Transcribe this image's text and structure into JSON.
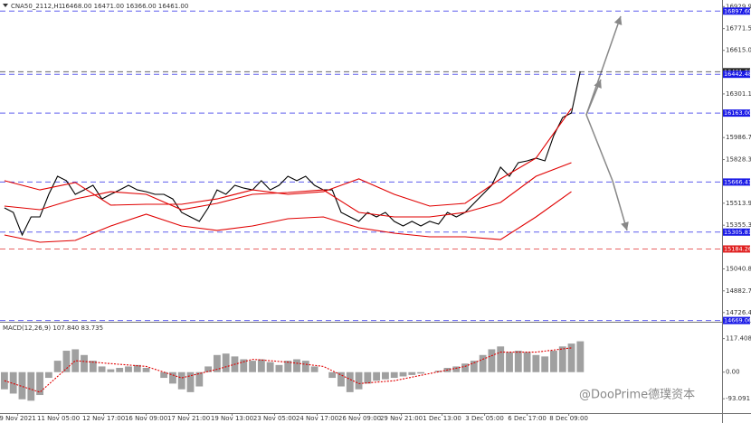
{
  "watermark": "@DooPrime德璞资本",
  "chart_data": [
    {
      "type": "line",
      "title": "CNA50_2112,H1",
      "subtitle": "16468.00 16471.00 16366.00 16461.00",
      "x": [
        0,
        1,
        2,
        3,
        4,
        5,
        6,
        7,
        8,
        9,
        10,
        11,
        12,
        13,
        14,
        15,
        16,
        17,
        18,
        19,
        20,
        21,
        22,
        23,
        24,
        25,
        26,
        27,
        28,
        29,
        30,
        31,
        32,
        33,
        34,
        35,
        36,
        37,
        38,
        39,
        40,
        41,
        42,
        43,
        44,
        45,
        46,
        47,
        48,
        49,
        50,
        51,
        52,
        53,
        54,
        55,
        56,
        57,
        58,
        59,
        60,
        61,
        62,
        63,
        64,
        65
      ],
      "xlim": [
        -0.5,
        81
      ],
      "xticks": [
        {
          "value": 1.5,
          "label": "9 Nov 2021"
        },
        {
          "value": 6.1,
          "label": "11 Nov 05:00"
        },
        {
          "value": 11.2,
          "label": "12 Nov 17:00"
        },
        {
          "value": 16,
          "label": "16 Nov 09:00"
        },
        {
          "value": 20.8,
          "label": "17 Nov 21:00"
        },
        {
          "value": 25.7,
          "label": "19 Nov 13:00"
        },
        {
          "value": 30.5,
          "label": "23 Nov 05:00"
        },
        {
          "value": 35.3,
          "label": "24 Nov 17:00"
        },
        {
          "value": 40.1,
          "label": "26 Nov 09:00"
        },
        {
          "value": 44.8,
          "label": "29 Nov 21:00"
        },
        {
          "value": 49.4,
          "label": "1 Dec 13:00"
        },
        {
          "value": 54.2,
          "label": "3 Dec 05:00"
        },
        {
          "value": 59,
          "label": "6 Dec 17:00"
        },
        {
          "value": 63.7,
          "label": "8 Dec 09:00"
        }
      ],
      "ylim": [
        14660,
        16945
      ],
      "yticks": [
        {
          "value": 16929.9,
          "label": "16929.90"
        },
        {
          "value": 16771.5,
          "label": "16771.50"
        },
        {
          "value": 16615,
          "label": "16615.00"
        },
        {
          "value": 16301.1,
          "label": "16301.10"
        },
        {
          "value": 15986.7,
          "label": "15986.70"
        },
        {
          "value": 15828.3,
          "label": "15828.30"
        },
        {
          "value": 15513.9,
          "label": "15513.90"
        },
        {
          "value": 15355.3,
          "label": "15355.30"
        },
        {
          "value": 15040.8,
          "label": "15040.80"
        },
        {
          "value": 14882.7,
          "label": "14882.70"
        },
        {
          "value": 14726.4,
          "label": "14726.40"
        }
      ],
      "series": [
        {
          "color": "#000000",
          "values": [
            15480,
            15448,
            15285,
            15415,
            15415,
            15578,
            15708,
            15676,
            15578,
            15610,
            15643,
            15545,
            15578,
            15610,
            15643,
            15610,
            15597,
            15578,
            15578,
            15545,
            15448,
            15415,
            15383,
            15480,
            15610,
            15578,
            15643,
            15623,
            15610,
            15676,
            15610,
            15643,
            15708,
            15676,
            15708,
            15643,
            15610,
            15610,
            15448,
            15415,
            15383,
            15448,
            15415,
            15448,
            15383,
            15350,
            15383,
            15350,
            15383,
            15363,
            15448,
            15415,
            15448,
            15513,
            15578,
            15643,
            15773,
            15708,
            15806,
            15819,
            15838,
            15819,
            16001,
            16131,
            16164,
            16461
          ]
        },
        {
          "color": "#e00000",
          "x": [
            0,
            4,
            8,
            12,
            16,
            20,
            24,
            28,
            32,
            36,
            40,
            44,
            48,
            52,
            56,
            60,
            64
          ],
          "values": [
            15676,
            15610,
            15663,
            15500,
            15506,
            15506,
            15545,
            15610,
            15578,
            15597,
            15689,
            15578,
            15493,
            15513,
            15689,
            15838,
            16196
          ]
        },
        {
          "color": "#e00000",
          "x": [
            0,
            4,
            8,
            12,
            16,
            20,
            24,
            28,
            32,
            36,
            40,
            44,
            48,
            52,
            56,
            60,
            64
          ],
          "values": [
            15493,
            15467,
            15545,
            15597,
            15578,
            15467,
            15513,
            15578,
            15591,
            15610,
            15448,
            15415,
            15415,
            15448,
            15519,
            15708,
            15806
          ]
        },
        {
          "color": "#e00000",
          "x": [
            0,
            4,
            8,
            12,
            16,
            20,
            24,
            28,
            32,
            36,
            40,
            44,
            48,
            52,
            56,
            60,
            64
          ],
          "values": [
            15285,
            15233,
            15246,
            15350,
            15435,
            15350,
            15318,
            15350,
            15402,
            15415,
            15337,
            15298,
            15272,
            15272,
            15252,
            15415,
            15597
          ]
        }
      ],
      "levels": [
        {
          "value": 16897.6,
          "label": "16897.60",
          "color": "#1a1ae6"
        },
        {
          "value": 16461,
          "label": "16461.00",
          "color": "#222222"
        },
        {
          "value": 16442.48,
          "label": "16442.48",
          "color": "#1a1ae6"
        },
        {
          "value": 16163,
          "label": "16163.00",
          "color": "#1a1ae6"
        },
        {
          "value": 15666.41,
          "label": "15666.41",
          "color": "#1a1ae6"
        },
        {
          "value": 15305.81,
          "label": "15305.81",
          "color": "#1a1ae6"
        },
        {
          "value": 15184.26,
          "label": "15184.26",
          "color": "#e02020"
        },
        {
          "value": 14669.06,
          "label": "14669.06",
          "color": "#1a1ae6"
        }
      ]
    },
    {
      "type": "bar",
      "title": "MACD(12,26,9) 107.840 83.735",
      "x": [
        0,
        1,
        2,
        3,
        4,
        5,
        6,
        7,
        8,
        9,
        10,
        11,
        12,
        13,
        14,
        15,
        16,
        17,
        18,
        19,
        20,
        21,
        22,
        23,
        24,
        25,
        26,
        27,
        28,
        29,
        30,
        31,
        32,
        33,
        34,
        35,
        36,
        37,
        38,
        39,
        40,
        41,
        42,
        43,
        44,
        45,
        46,
        47,
        48,
        49,
        50,
        51,
        52,
        53,
        54,
        55,
        56,
        57,
        58,
        59,
        60,
        61,
        62,
        63,
        64,
        65
      ],
      "xlim": [
        -0.5,
        81
      ],
      "ylim": [
        -140,
        170
      ],
      "yticks": [
        117.408,
        {
          "value": 0,
          "label": "0.00"
        },
        -93.091
      ],
      "series": [
        {
          "type": "bar",
          "color": "#a0a0a0",
          "values": [
            -60,
            -75,
            -95,
            -100,
            -80,
            -20,
            40,
            75,
            80,
            60,
            40,
            20,
            10,
            15,
            20,
            25,
            15,
            0,
            -20,
            -40,
            -60,
            -70,
            -50,
            20,
            60,
            65,
            55,
            45,
            40,
            45,
            35,
            25,
            40,
            45,
            40,
            20,
            0,
            -20,
            -50,
            -70,
            -60,
            -40,
            -30,
            -25,
            -20,
            -15,
            -10,
            -5,
            0,
            5,
            15,
            20,
            30,
            40,
            60,
            80,
            90,
            70,
            75,
            70,
            60,
            55,
            75,
            90,
            100,
            108
          ]
        },
        {
          "type": "line",
          "color": "#e00000",
          "x": [
            0,
            4,
            8,
            12,
            16,
            20,
            24,
            28,
            32,
            36,
            40,
            44,
            48,
            52,
            56,
            60,
            64
          ],
          "values": [
            -30,
            -70,
            40,
            30,
            20,
            -20,
            10,
            45,
            35,
            20,
            -40,
            -30,
            -5,
            20,
            70,
            70,
            85
          ]
        }
      ]
    }
  ]
}
